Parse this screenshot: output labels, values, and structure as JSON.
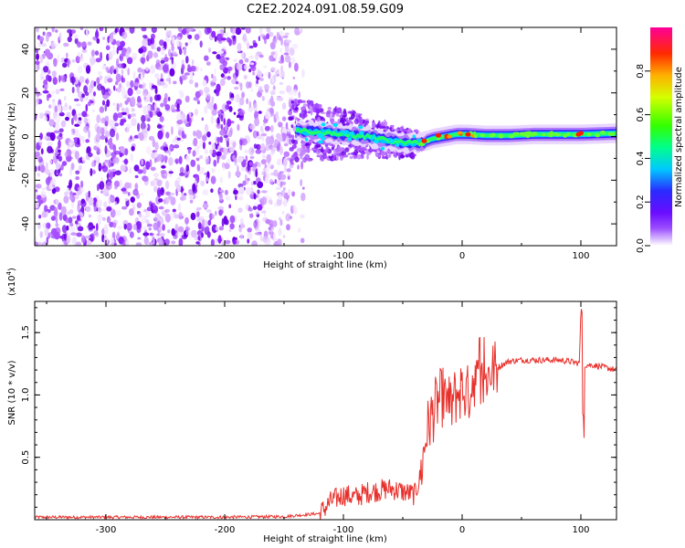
{
  "title": "C2E2.2024.091.08.59.G09",
  "chart_data": [
    {
      "type": "heatmap",
      "xlabel": "Height of straight line (km)",
      "ylabel": "Frequency (Hz)",
      "xlim": [
        -360,
        130
      ],
      "ylim": [
        -50,
        50
      ],
      "xticks": [
        -300,
        -200,
        -100,
        0,
        100
      ],
      "yticks": [
        -40,
        -20,
        0,
        20,
        40
      ],
      "colorbar": {
        "label": "Normalized spectral amplitude",
        "range": [
          0,
          1
        ],
        "ticks": [
          "0.0",
          "0.2",
          "0.4",
          "0.6",
          "0.8"
        ]
      },
      "ridge": {
        "description_free_values": true,
        "x": [
          -140,
          -120,
          -100,
          -80,
          -60,
          -45,
          -35,
          -25,
          -15,
          -5,
          5,
          20,
          40,
          60,
          80,
          100,
          130
        ],
        "frequency": [
          3,
          2,
          1,
          0,
          -2,
          -3,
          -3,
          -1,
          0,
          1,
          1,
          0.5,
          0.5,
          1,
          1,
          1,
          1.5
        ]
      }
    },
    {
      "type": "line",
      "xlabel": "Height of straight line (km)",
      "ylabel": "SNR (10 * v/v)",
      "yscale_label": "(x10",
      "yscale_exp": "4",
      "xlim": [
        -360,
        130
      ],
      "ylim": [
        0,
        1.75
      ],
      "xticks": [
        -300,
        -200,
        -100,
        0,
        100
      ],
      "yticks": [
        "0.5",
        "1.0",
        "1.5"
      ],
      "series": [
        {
          "name": "SNR",
          "color": "#e8302b",
          "x": [
            -360,
            -300,
            -200,
            -150,
            -120,
            -110,
            -100,
            -90,
            -80,
            -60,
            -40,
            -35,
            -30,
            -25,
            -20,
            -15,
            -10,
            -5,
            0,
            5,
            10,
            15,
            20,
            25,
            30,
            35,
            40,
            50,
            60,
            70,
            80,
            90,
            95,
            100,
            101,
            103,
            110,
            120,
            130
          ],
          "y": [
            0.02,
            0.02,
            0.02,
            0.025,
            0.05,
            0.15,
            0.2,
            0.18,
            0.22,
            0.25,
            0.2,
            0.35,
            0.7,
            0.85,
            0.95,
            1.0,
            0.9,
            1.0,
            1.05,
            1.0,
            1.15,
            1.05,
            1.15,
            1.2,
            1.22,
            1.25,
            1.27,
            1.28,
            1.28,
            1.28,
            1.28,
            1.27,
            1.26,
            1.25,
            1.7,
            1.24,
            1.24,
            1.22,
            1.2
          ]
        }
      ]
    }
  ]
}
